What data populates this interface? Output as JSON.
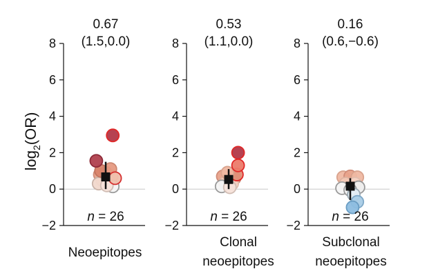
{
  "chart_data": {
    "type": "scatter",
    "ylabel_base": "log",
    "ylabel_sub": "2",
    "ylabel_rest": "(OR)",
    "ylim": [
      -2,
      8
    ],
    "yticks": [
      -2,
      0,
      2,
      4,
      6,
      8
    ],
    "ytick_labels": [
      "−2",
      "0",
      "2",
      "4",
      "6",
      "8"
    ],
    "grid": false,
    "panels": [
      {
        "category_lines": [
          "Neoepitopes"
        ],
        "stat": "0.67",
        "ci": "(1.5,0.0)",
        "n_label": "= 26",
        "n_prefix": "n",
        "mean": 0.67,
        "ci_low": 0.0,
        "ci_high": 1.5,
        "points": [
          {
            "dx": -0.25,
            "y": 0.8,
            "color": "#e8a28a",
            "edge": "#d08c78"
          },
          {
            "dx": 0.0,
            "y": 0.9,
            "color": "#e08f78",
            "edge": "#c97d68"
          },
          {
            "dx": 0.25,
            "y": 0.7,
            "color": "#efb8a2",
            "edge": "#d9a38d"
          },
          {
            "dx": -0.15,
            "y": 0.5,
            "color": "#f3c9b6",
            "edge": "#dcb3a1"
          },
          {
            "dx": 0.15,
            "y": 0.4,
            "color": "#f6d3c3",
            "edge": "#e0bdad"
          },
          {
            "dx": 0.3,
            "y": 0.15,
            "color": "#f4f4f4",
            "edge": "#999999"
          },
          {
            "dx": -0.3,
            "y": 0.3,
            "color": "#f1d8cc",
            "edge": "#c9b2a7"
          },
          {
            "dx": 0.05,
            "y": 0.2,
            "color": "#f7e3da",
            "edge": "#d1bdb4"
          },
          {
            "dx": -0.2,
            "y": 1.0,
            "color": "#d9846c",
            "edge": "#c1745e"
          },
          {
            "dx": 0.2,
            "y": 1.1,
            "color": "#e69a82",
            "edge": "#cc8771"
          },
          {
            "dx": 0.4,
            "y": 0.6,
            "color": "#f0c0ad",
            "edge": "#d53030"
          },
          {
            "dx": -0.4,
            "y": 1.55,
            "color": "#b0404e",
            "edge": "#8e2a38"
          },
          {
            "dx": 0.3,
            "y": 2.95,
            "color": "#b23848",
            "edge": "#e02828"
          }
        ]
      },
      {
        "category_lines": [
          "Clonal",
          "neoepitopes"
        ],
        "stat": "0.53",
        "ci": "(1.1,0.0)",
        "n_label": "= 26",
        "n_prefix": "n",
        "mean": 0.53,
        "ci_low": 0.0,
        "ci_high": 1.1,
        "points": [
          {
            "dx": -0.25,
            "y": 0.7,
            "color": "#e8a28a",
            "edge": "#d08c78"
          },
          {
            "dx": 0.0,
            "y": 0.55,
            "color": "#efb8a2",
            "edge": "#d9a38d"
          },
          {
            "dx": 0.25,
            "y": 0.6,
            "color": "#e69a82",
            "edge": "#cc8771"
          },
          {
            "dx": -0.15,
            "y": 0.35,
            "color": "#f3c9b6",
            "edge": "#dcb3a1"
          },
          {
            "dx": 0.15,
            "y": 0.3,
            "color": "#f6d3c3",
            "edge": "#e0bdad"
          },
          {
            "dx": -0.3,
            "y": 0.15,
            "color": "#f4f4f4",
            "edge": "#999999"
          },
          {
            "dx": 0.05,
            "y": 0.1,
            "color": "#f7e3da",
            "edge": "#d1bdb4"
          },
          {
            "dx": 0.35,
            "y": 0.8,
            "color": "#e08f78",
            "edge": "#e02828"
          },
          {
            "dx": -0.05,
            "y": 0.9,
            "color": "#efb8a2",
            "edge": "#d9a38d"
          },
          {
            "dx": 0.4,
            "y": 1.3,
            "color": "#ec7b6a",
            "edge": "#e02828"
          },
          {
            "dx": 0.4,
            "y": 2.0,
            "color": "#b23848",
            "edge": "#e02828"
          }
        ]
      },
      {
        "category_lines": [
          "Subclonal",
          "neoepitopes"
        ],
        "stat": "0.16",
        "ci": "(0.6,−0.6)",
        "n_label": "= 26",
        "n_prefix": "n",
        "mean": 0.16,
        "ci_low": -0.6,
        "ci_high": 0.6,
        "points": [
          {
            "dx": -0.3,
            "y": 0.65,
            "color": "#efb8a2",
            "edge": "#d9a38d"
          },
          {
            "dx": 0.0,
            "y": 0.7,
            "color": "#e8a28a",
            "edge": "#d08c78"
          },
          {
            "dx": 0.3,
            "y": 0.65,
            "color": "#efb8a2",
            "edge": "#d9a38d"
          },
          {
            "dx": -0.2,
            "y": 0.3,
            "color": "#f3c9b6",
            "edge": "#dcb3a1"
          },
          {
            "dx": 0.2,
            "y": 0.3,
            "color": "#f6d3c3",
            "edge": "#e0bdad"
          },
          {
            "dx": -0.35,
            "y": 0.05,
            "color": "#f4f4f4",
            "edge": "#999999"
          },
          {
            "dx": 0.35,
            "y": 0.1,
            "color": "#eeeeee",
            "edge": "#999999"
          },
          {
            "dx": 0.0,
            "y": -0.05,
            "color": "#f7f7f7",
            "edge": "#999999"
          },
          {
            "dx": 0.15,
            "y": -0.3,
            "color": "#e4eef5",
            "edge": "#9aa8b2"
          },
          {
            "dx": 0.3,
            "y": -0.7,
            "color": "#a9cce6",
            "edge": "#7fa9c8"
          },
          {
            "dx": 0.1,
            "y": -1.0,
            "color": "#8dbde0",
            "edge": "#6a9dc3"
          }
        ]
      }
    ]
  }
}
